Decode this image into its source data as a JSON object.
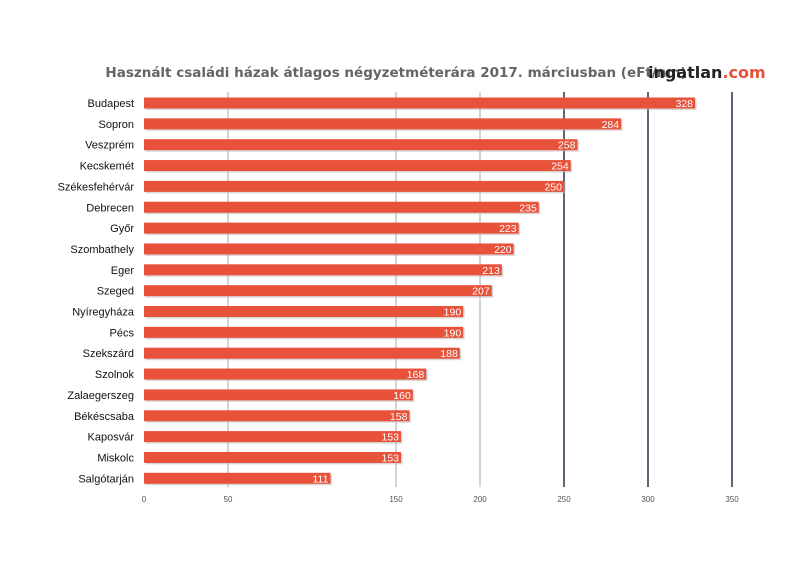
{
  "brand": {
    "name": "ingatlan",
    "suffix": ".com",
    "name_color": "#222222",
    "suffix_color": "#e8523a"
  },
  "colors": {
    "bar": "#e8523a",
    "bar_shadow": "#b8b8b8",
    "grid": "#a8a8a8",
    "grid_major": "#3c3c55",
    "title": "#646464"
  },
  "chart_data": {
    "type": "bar",
    "orientation": "horizontal",
    "title": "Használt családi házak átlagos négyzetméterára 2017. márciusban (eFt/nm)",
    "xlabel": "",
    "ylabel": "",
    "categories": [
      "Budapest",
      "Sopron",
      "Veszprém",
      "Kecskemét",
      "Székesfehérvár",
      "Debrecen",
      "Győr",
      "Szombathely",
      "Eger",
      "Szeged",
      "Nyíregyháza",
      "Pécs",
      "Szekszárd",
      "Szolnok",
      "Zalaegerszeg",
      "Békéscsaba",
      "Kaposvár",
      "Miskolc",
      "Salgótarján"
    ],
    "values": [
      328,
      284,
      258,
      254,
      250,
      235,
      223,
      220,
      213,
      207,
      190,
      190,
      188,
      168,
      160,
      158,
      153,
      153,
      111
    ],
    "xlim": [
      0,
      350
    ],
    "xticks": [
      0,
      50,
      150,
      200,
      250,
      300,
      350
    ],
    "grid": true,
    "legend": "none"
  }
}
